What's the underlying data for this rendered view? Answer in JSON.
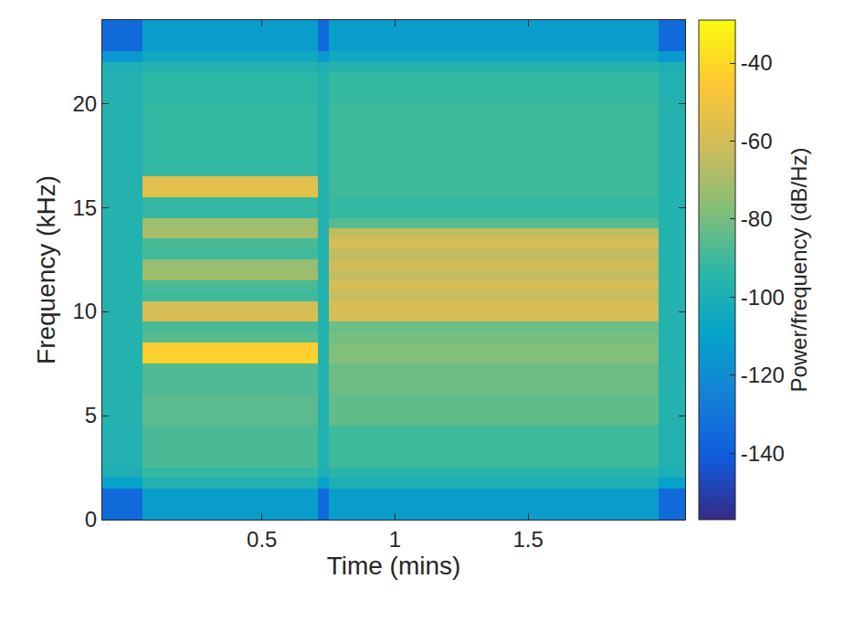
{
  "chart_data": {
    "type": "heatmap",
    "x_label": "Time (mins)",
    "y_label": "Frequency (kHz)",
    "colorbar_title": "Power/frequency (dB/Hz)",
    "x": [
      -0.1,
      0.05,
      0.38,
      0.71,
      0.75,
      1.37,
      1.99,
      2.09
    ],
    "y": [
      0,
      0.5,
      1,
      1.5,
      2,
      2.5,
      3,
      3.5,
      4,
      4.5,
      5,
      5.5,
      6,
      6.5,
      7,
      7.5,
      8,
      8.5,
      9,
      9.5,
      10,
      10.5,
      11,
      11.5,
      12,
      12.5,
      13,
      13.5,
      14,
      14.5,
      15,
      15.5,
      16,
      16.5,
      17,
      17.5,
      18,
      18.5,
      19,
      19.5,
      20,
      20.5,
      21,
      21.5,
      22,
      22.5,
      23,
      23.5,
      24
    ],
    "z": [
      [
        -135,
        -112,
        -112,
        -135,
        -112,
        -112,
        -135
      ],
      [
        -135,
        -112,
        -112,
        -135,
        -112,
        -112,
        -135
      ],
      [
        -135,
        -112,
        -112,
        -135,
        -112,
        -112,
        -135
      ],
      [
        -110,
        -98,
        -98,
        -110,
        -100,
        -100,
        -110
      ],
      [
        -100,
        -92,
        -92,
        -100,
        -95,
        -95,
        -100
      ],
      [
        -98,
        -88,
        -88,
        -98,
        -90,
        -90,
        -98
      ],
      [
        -98,
        -88,
        -88,
        -98,
        -90,
        -90,
        -98
      ],
      [
        -98,
        -88,
        -88,
        -98,
        -90,
        -90,
        -98
      ],
      [
        -98,
        -88,
        -88,
        -98,
        -90,
        -90,
        -98
      ],
      [
        -97,
        -85,
        -85,
        -97,
        -84,
        -84,
        -97
      ],
      [
        -97,
        -85,
        -85,
        -97,
        -84,
        -84,
        -97
      ],
      [
        -97,
        -85,
        -85,
        -97,
        -84,
        -84,
        -97
      ],
      [
        -97,
        -87,
        -87,
        -97,
        -82,
        -82,
        -97
      ],
      [
        -97,
        -87,
        -87,
        -97,
        -82,
        -82,
        -97
      ],
      [
        -97,
        -87,
        -87,
        -97,
        -82,
        -82,
        -97
      ],
      [
        -97,
        -42,
        -42,
        -97,
        -78,
        -78,
        -97
      ],
      [
        -97,
        -44,
        -44,
        -97,
        -78,
        -78,
        -97
      ],
      [
        -97,
        -86,
        -86,
        -97,
        -80,
        -80,
        -97
      ],
      [
        -97,
        -88,
        -88,
        -97,
        -82,
        -82,
        -97
      ],
      [
        -97,
        -58,
        -58,
        -97,
        -60,
        -60,
        -97
      ],
      [
        -97,
        -60,
        -60,
        -97,
        -58,
        -58,
        -97
      ],
      [
        -97,
        -90,
        -90,
        -97,
        -63,
        -63,
        -97
      ],
      [
        -97,
        -88,
        -88,
        -97,
        -60,
        -60,
        -97
      ],
      [
        -97,
        -72,
        -72,
        -97,
        -64,
        -64,
        -97
      ],
      [
        -97,
        -74,
        -74,
        -97,
        -61,
        -61,
        -97
      ],
      [
        -97,
        -90,
        -90,
        -97,
        -65,
        -65,
        -97
      ],
      [
        -97,
        -88,
        -88,
        -97,
        -60,
        -60,
        -97
      ],
      [
        -97,
        -70,
        -70,
        -97,
        -64,
        -64,
        -97
      ],
      [
        -97,
        -72,
        -72,
        -97,
        -86,
        -86,
        -97
      ],
      [
        -97,
        -92,
        -92,
        -97,
        -92,
        -92,
        -97
      ],
      [
        -97,
        -92,
        -92,
        -97,
        -92,
        -92,
        -97
      ],
      [
        -97,
        -54,
        -54,
        -97,
        -90,
        -90,
        -97
      ],
      [
        -97,
        -56,
        -56,
        -97,
        -90,
        -90,
        -97
      ],
      [
        -97,
        -92,
        -92,
        -97,
        -90,
        -90,
        -97
      ],
      [
        -97,
        -92,
        -92,
        -97,
        -90,
        -90,
        -97
      ],
      [
        -97,
        -92,
        -92,
        -97,
        -90,
        -90,
        -97
      ],
      [
        -97,
        -92,
        -92,
        -97,
        -90,
        -90,
        -97
      ],
      [
        -97,
        -92,
        -92,
        -97,
        -90,
        -90,
        -97
      ],
      [
        -97,
        -92,
        -92,
        -97,
        -90,
        -90,
        -97
      ],
      [
        -97,
        -92,
        -92,
        -97,
        -90,
        -90,
        -97
      ],
      [
        -98,
        -94,
        -94,
        -98,
        -92,
        -92,
        -98
      ],
      [
        -98,
        -94,
        -94,
        -98,
        -92,
        -92,
        -98
      ],
      [
        -98,
        -94,
        -94,
        -98,
        -92,
        -92,
        -98
      ],
      [
        -100,
        -97,
        -97,
        -100,
        -96,
        -96,
        -100
      ],
      [
        -115,
        -105,
        -105,
        -115,
        -105,
        -105,
        -115
      ],
      [
        -135,
        -112,
        -112,
        -135,
        -112,
        -112,
        -135
      ],
      [
        -135,
        -112,
        -112,
        -135,
        -112,
        -112,
        -135
      ],
      [
        -135,
        -112,
        -112,
        -135,
        -112,
        -112,
        -135
      ]
    ],
    "xlim": [
      -0.1,
      2.09
    ],
    "ylim": [
      0,
      24
    ],
    "xticks": [
      0.5,
      1,
      1.5
    ],
    "yticks": [
      0,
      5,
      10,
      15,
      20
    ],
    "zlim": [
      -157,
      -29
    ],
    "zticks": [
      -140,
      -120,
      -100,
      -80,
      -60,
      -40
    ]
  }
}
